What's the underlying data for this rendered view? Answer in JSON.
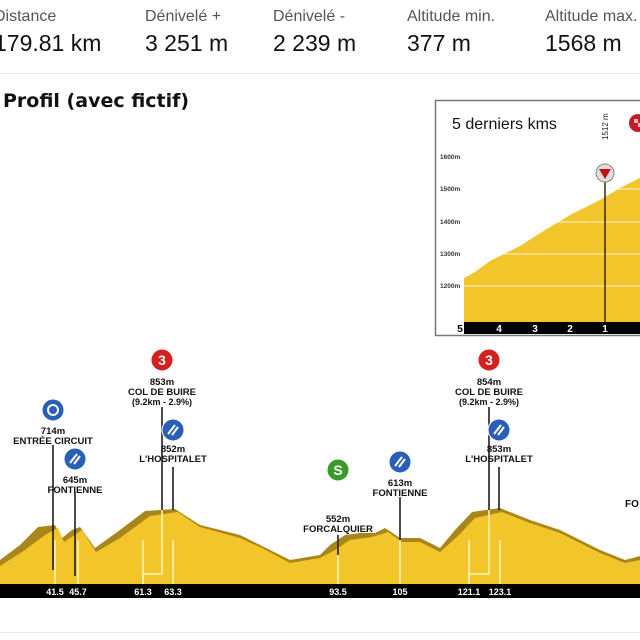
{
  "stats": [
    {
      "label": "Distance",
      "value": "179.81 km"
    },
    {
      "label": "Dénivelé +",
      "value": "3 251 m"
    },
    {
      "label": "Dénivelé -",
      "value": "2 239 m"
    },
    {
      "label": "Altitude min.",
      "value": "377 m"
    },
    {
      "label": "Altitude max.",
      "value": "1568 m"
    }
  ],
  "profile_title": "Profil (avec fictif)",
  "inset": {
    "title": "5 derniers kms",
    "y_ticks": [
      "1600m",
      "1500m",
      "1400m",
      "1300m",
      "1200m"
    ],
    "km_ticks": [
      "5",
      "4",
      "3",
      "2",
      "1"
    ],
    "marker_label": "1512 m"
  },
  "waypoints": [
    {
      "alt": "714m",
      "name": "ENTRÉE CIRCUIT",
      "icon": "circuit-icon",
      "color": "#2a5fb8"
    },
    {
      "alt": "645m",
      "name": "FONTIENNE",
      "icon": "sprint-icon",
      "color": "#2a5fb8"
    },
    {
      "alt": "853m",
      "name": "COL DE BUIRE",
      "detail": "(9.2km - 2.9%)",
      "icon": "climb-cat-3-icon",
      "badge": "3",
      "color": "#d42020"
    },
    {
      "alt": "852m",
      "name": "L'HOSPITALET",
      "icon": "sprint-icon",
      "color": "#2a5fb8"
    },
    {
      "alt": "552m",
      "name": "FORCALQUIER",
      "icon": "sprint-s-icon",
      "badge": "S",
      "color": "#3a9a2a"
    },
    {
      "alt": "613m",
      "name": "FONTIENNE",
      "icon": "sprint-icon",
      "color": "#2a5fb8"
    },
    {
      "alt": "854m",
      "name": "COL DE BUIRE",
      "detail": "(9.2km - 2.9%)",
      "icon": "climb-cat-3-icon",
      "badge": "3",
      "color": "#d42020"
    },
    {
      "alt": "853m",
      "name": "L'HOSPITALET",
      "icon": "sprint-icon",
      "color": "#2a5fb8"
    }
  ],
  "cut_label": "FO",
  "km_marks": [
    "41.5",
    "45.7",
    "61.3",
    "63.3",
    "93.5",
    "105",
    "121.1",
    "123.1"
  ],
  "colors": {
    "fill": "#f2c62a",
    "shadow": "#a8861a",
    "bar": "#000000"
  }
}
